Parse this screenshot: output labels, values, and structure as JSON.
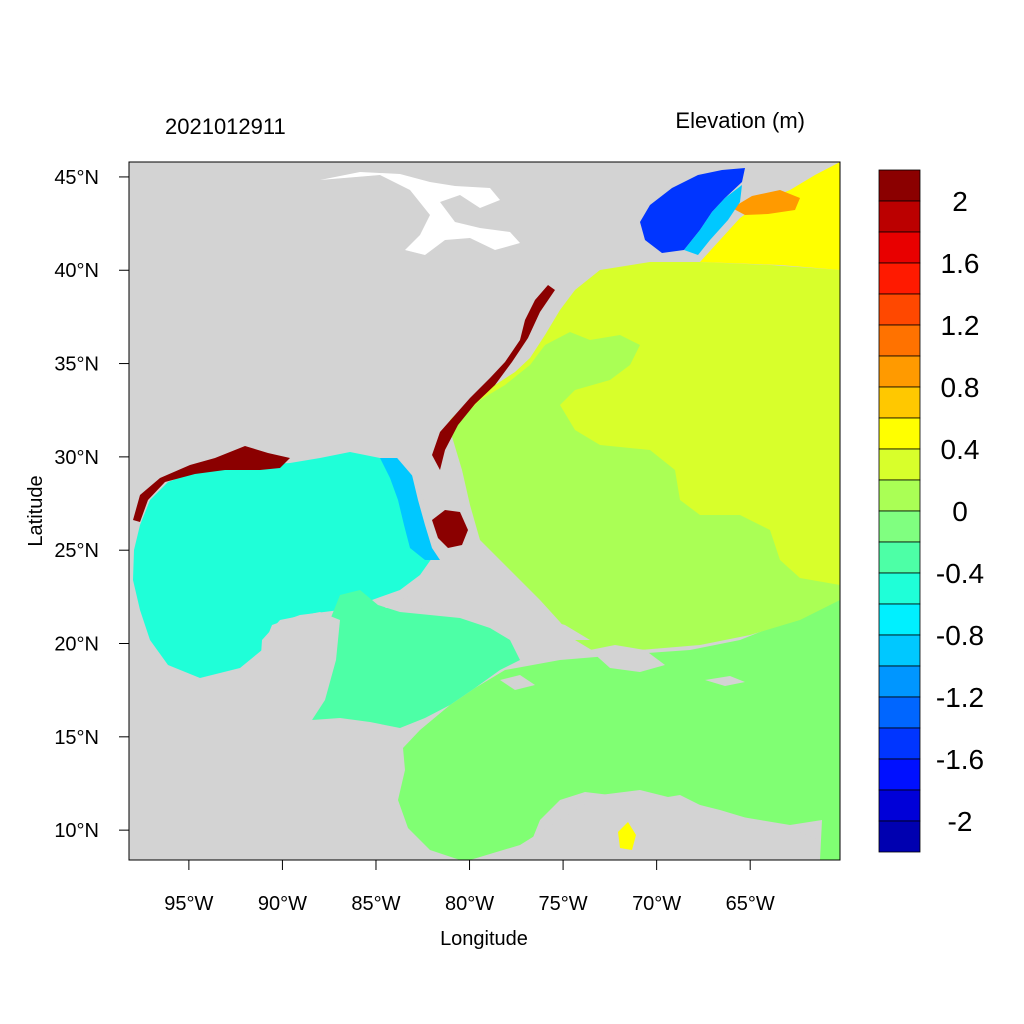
{
  "map": {
    "timestamp": "2021012911",
    "title": "Elevation (m)",
    "xlabel": "Longitude",
    "ylabel": "Latitude",
    "lon_range": [
      -98.2,
      -60.2
    ],
    "lat_range": [
      8.4,
      45.8
    ],
    "x_ticks": [
      {
        "value": -95,
        "label": "95°W"
      },
      {
        "value": -90,
        "label": "90°W"
      },
      {
        "value": -85,
        "label": "85°W"
      },
      {
        "value": -80,
        "label": "80°W"
      },
      {
        "value": -75,
        "label": "75°W"
      },
      {
        "value": -70,
        "label": "70°W"
      },
      {
        "value": -65,
        "label": "65°W"
      }
    ],
    "y_ticks": [
      {
        "value": 45,
        "label": "45°N"
      },
      {
        "value": 40,
        "label": "40°N"
      },
      {
        "value": 35,
        "label": "35°N"
      },
      {
        "value": 30,
        "label": "30°N"
      },
      {
        "value": 25,
        "label": "25°N"
      },
      {
        "value": 20,
        "label": "20°N"
      },
      {
        "value": 15,
        "label": "15°N"
      },
      {
        "value": 10,
        "label": "10°N"
      }
    ],
    "colors": {
      "land": "#d3d3d3",
      "lakes": "#ffffff",
      "gulf": "#1fffd8",
      "caribbean": "#4dffa6",
      "atlantic_south": "#80ff73",
      "atlantic_mid": "#aaff55",
      "atlantic_shelf": "#d8ff2b",
      "north_high": "#ffff00",
      "positive_high": "#8b0000",
      "negative_low": "#0a2dff"
    },
    "colorbar": {
      "bins": [
        {
          "color": "#8b0000"
        },
        {
          "color": "#bb0000"
        },
        {
          "color": "#e80000"
        },
        {
          "color": "#ff1a00"
        },
        {
          "color": "#ff4800"
        },
        {
          "color": "#ff7200"
        },
        {
          "color": "#ff9a00"
        },
        {
          "color": "#ffc800"
        },
        {
          "color": "#ffff00"
        },
        {
          "color": "#d8ff2b"
        },
        {
          "color": "#aaff55"
        },
        {
          "color": "#80ff80"
        },
        {
          "color": "#4dffa6"
        },
        {
          "color": "#1fffd8"
        },
        {
          "color": "#00f0ff"
        },
        {
          "color": "#00c8ff"
        },
        {
          "color": "#0096ff"
        },
        {
          "color": "#0066ff"
        },
        {
          "color": "#0035ff"
        },
        {
          "color": "#0010ff"
        },
        {
          "color": "#0000d8"
        },
        {
          "color": "#0000b0"
        }
      ],
      "labels": [
        {
          "value": 2,
          "label": "2"
        },
        {
          "value": 1.6,
          "label": "1.6"
        },
        {
          "value": 1.2,
          "label": "1.2"
        },
        {
          "value": 0.8,
          "label": "0.8"
        },
        {
          "value": 0.4,
          "label": "0.4"
        },
        {
          "value": 0,
          "label": "0"
        },
        {
          "value": -0.4,
          "label": "-0.4"
        },
        {
          "value": -0.8,
          "label": "-0.8"
        },
        {
          "value": -1.2,
          "label": "-1.2"
        },
        {
          "value": -1.6,
          "label": "-1.6"
        },
        {
          "value": -2,
          "label": "-2"
        }
      ]
    }
  }
}
